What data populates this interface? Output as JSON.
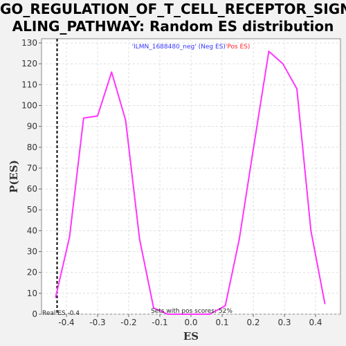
{
  "title_line1": "GO_REGULATION_OF_T_CELL_RECEPTOR_SIGN",
  "title_line2": "ALING_PATHWAY: Random ES distribution",
  "colors": {
    "series": "#ff33ff",
    "legend_neg": "#3333ff",
    "legend_pos": "#ff2222",
    "real_es_line": "#000000"
  },
  "chart_data": {
    "type": "line",
    "title": "GO_REGULATION_OF_T_CELL_RECEPTOR_SIGNALING_PATHWAY: Random ES distribution",
    "xlabel": "ES",
    "ylabel": "P(ES)",
    "xlim": [
      -0.48,
      0.48
    ],
    "ylim": [
      0,
      132
    ],
    "x_ticks": [
      -0.4,
      -0.3,
      -0.2,
      -0.1,
      0.0,
      0.1,
      0.2,
      0.3,
      0.4
    ],
    "x_tick_labels": [
      "-0.4",
      "-0.3",
      "-0.2",
      "-0.1",
      "0.0",
      "0.1",
      "0.2",
      "0.3",
      "0.4"
    ],
    "y_ticks": [
      0,
      10,
      20,
      30,
      40,
      50,
      60,
      70,
      80,
      90,
      100,
      110,
      120,
      130
    ],
    "y_tick_labels": [
      "0",
      "10",
      "20",
      "30",
      "40",
      "50",
      "60",
      "70",
      "80",
      "90",
      "100",
      "110",
      "120",
      "130"
    ],
    "grid": true,
    "legend_position": "top-center",
    "legend_label": "'ILMN_1688480_neg' (Neg ES)",
    "legend_label_pos": "'Pos ES)",
    "real_es": -0.43,
    "real_es_label": "Real ES -0.4",
    "annotation": "Sets with pos scores: 52%",
    "series": [
      {
        "x": [
          -0.435,
          -0.39,
          -0.345,
          -0.3,
          -0.255,
          -0.21,
          -0.165,
          -0.12,
          -0.075,
          -0.03,
          0.015,
          0.06,
          0.11,
          0.155,
          0.2,
          0.25,
          0.295,
          0.34,
          0.385,
          0.43
        ],
        "y": [
          8,
          37,
          94,
          95,
          116,
          93,
          36,
          3,
          0,
          0,
          0,
          0,
          4,
          36,
          79,
          126,
          120,
          108,
          40,
          5
        ]
      }
    ]
  }
}
